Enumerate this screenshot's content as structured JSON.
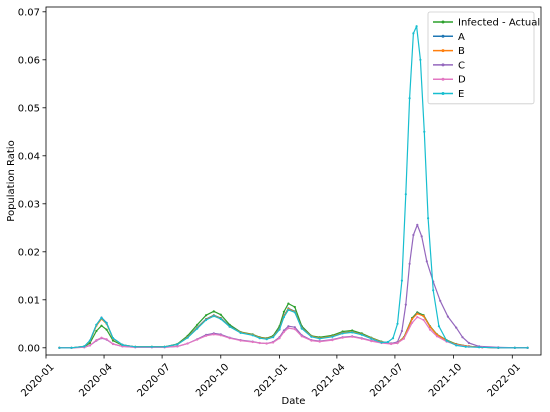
{
  "chart_data": {
    "type": "line",
    "title": "",
    "xlabel": "Date",
    "ylabel": "Population Ratio",
    "x_ticks": [
      "2020-01",
      "2020-04",
      "2020-07",
      "2020-10",
      "2021-01",
      "2021-04",
      "2021-07",
      "2021-10",
      "2022-01"
    ],
    "y_ticks": [
      "0.00",
      "0.01",
      "0.02",
      "0.03",
      "0.04",
      "0.05",
      "0.06",
      "0.07"
    ],
    "xlim": [
      "2020-01-01",
      "2022-02-15"
    ],
    "ylim": [
      -0.0015,
      0.071
    ],
    "grid": false,
    "legend_position": "top-right",
    "series": [
      {
        "name": "Infected - Actual",
        "color": "#2ca02c",
        "x": [
          "2020-01-22",
          "2020-02-10",
          "2020-03-01",
          "2020-03-10",
          "2020-03-20",
          "2020-03-28",
          "2020-04-05",
          "2020-04-15",
          "2020-04-30",
          "2020-05-20",
          "2020-06-15",
          "2020-07-05",
          "2020-07-25",
          "2020-08-10",
          "2020-08-25",
          "2020-09-08",
          "2020-09-20",
          "2020-10-01",
          "2020-10-15",
          "2020-11-01",
          "2020-11-20",
          "2020-12-01",
          "2020-12-12",
          "2020-12-22",
          "2021-01-01",
          "2021-01-08",
          "2021-01-15",
          "2021-01-25",
          "2021-02-05",
          "2021-02-20",
          "2021-03-05",
          "2021-03-25",
          "2021-04-10",
          "2021-04-25",
          "2021-05-10",
          "2021-05-25",
          "2021-06-10",
          "2021-06-25",
          "2021-07-05",
          "2021-07-15",
          "2021-07-28",
          "2021-08-05",
          "2021-08-15",
          "2021-08-25",
          "2021-09-05",
          "2021-09-20",
          "2021-10-05",
          "2021-10-25",
          "2021-11-15",
          "2021-12-10",
          "2022-01-05",
          "2022-01-25"
        ],
        "y": [
          0.0,
          0.0,
          0.0002,
          0.001,
          0.0035,
          0.0046,
          0.0038,
          0.0015,
          0.0005,
          0.0002,
          0.0002,
          0.0002,
          0.0008,
          0.0025,
          0.0048,
          0.0068,
          0.0076,
          0.0069,
          0.0048,
          0.0033,
          0.0028,
          0.0022,
          0.002,
          0.0025,
          0.0045,
          0.0075,
          0.0092,
          0.0085,
          0.0045,
          0.0025,
          0.0022,
          0.0026,
          0.0034,
          0.0036,
          0.003,
          0.0021,
          0.0013,
          0.0009,
          0.001,
          0.0022,
          0.0062,
          0.0074,
          0.0068,
          0.0045,
          0.0028,
          0.0016,
          0.0008,
          0.0003,
          0.0001,
          0.0,
          0.0,
          0.0
        ]
      },
      {
        "name": "A",
        "color": "#1f77b4",
        "x": [
          "2020-01-22",
          "2020-02-10",
          "2020-03-01",
          "2020-03-10",
          "2020-03-20",
          "2020-03-28",
          "2020-04-05",
          "2020-04-15",
          "2020-04-30",
          "2020-05-20",
          "2020-06-15",
          "2020-07-05",
          "2020-07-25",
          "2020-08-10",
          "2020-08-25",
          "2020-09-08",
          "2020-09-20",
          "2020-10-01",
          "2020-10-15",
          "2020-11-01",
          "2020-11-20",
          "2020-12-01",
          "2020-12-12",
          "2020-12-22",
          "2021-01-01",
          "2021-01-08",
          "2021-01-15",
          "2021-01-25",
          "2021-02-05",
          "2021-02-20",
          "2021-03-05",
          "2021-03-25",
          "2021-04-10",
          "2021-04-25",
          "2021-05-10",
          "2021-05-25",
          "2021-06-10",
          "2021-06-25",
          "2021-07-05",
          "2021-07-15",
          "2021-07-28",
          "2021-08-05",
          "2021-08-15",
          "2021-08-25",
          "2021-09-05",
          "2021-09-20",
          "2021-10-05",
          "2021-10-25",
          "2021-11-15",
          "2021-12-10",
          "2022-01-05",
          "2022-01-25"
        ],
        "y": [
          0.0,
          0.0,
          0.0003,
          0.0015,
          0.0048,
          0.0063,
          0.0052,
          0.002,
          0.0006,
          0.0002,
          0.0002,
          0.0002,
          0.0007,
          0.0022,
          0.0042,
          0.006,
          0.0068,
          0.0062,
          0.0045,
          0.0032,
          0.0027,
          0.0021,
          0.0019,
          0.0023,
          0.004,
          0.0067,
          0.0082,
          0.0076,
          0.0042,
          0.0024,
          0.002,
          0.0024,
          0.0031,
          0.0033,
          0.0028,
          0.002,
          0.0012,
          0.0009,
          0.001,
          0.0021,
          0.006,
          0.0072,
          0.0066,
          0.0044,
          0.0027,
          0.0015,
          0.0007,
          0.0003,
          0.0001,
          0.0,
          0.0,
          0.0
        ]
      },
      {
        "name": "B",
        "color": "#ff7f0e",
        "x": [
          "2020-01-22",
          "2020-02-10",
          "2020-03-01",
          "2020-03-10",
          "2020-03-20",
          "2020-03-28",
          "2020-04-05",
          "2020-04-15",
          "2020-04-30",
          "2020-05-20",
          "2020-06-15",
          "2020-07-05",
          "2020-07-25",
          "2020-08-10",
          "2020-08-25",
          "2020-09-08",
          "2020-09-20",
          "2020-10-01",
          "2020-10-15",
          "2020-11-01",
          "2020-11-20",
          "2020-12-01",
          "2020-12-12",
          "2020-12-22",
          "2021-01-01",
          "2021-01-08",
          "2021-01-15",
          "2021-01-25",
          "2021-02-05",
          "2021-02-20",
          "2021-03-05",
          "2021-03-25",
          "2021-04-10",
          "2021-04-25",
          "2021-05-10",
          "2021-05-25",
          "2021-06-10",
          "2021-06-25",
          "2021-07-05",
          "2021-07-15",
          "2021-07-28",
          "2021-08-05",
          "2021-08-15",
          "2021-08-25",
          "2021-09-05",
          "2021-09-20",
          "2021-10-05",
          "2021-10-25",
          "2021-11-15",
          "2021-12-10",
          "2022-01-05",
          "2022-01-25"
        ],
        "y": [
          0.0,
          0.0,
          0.0003,
          0.0014,
          0.0046,
          0.006,
          0.005,
          0.0019,
          0.0006,
          0.0002,
          0.0002,
          0.0002,
          0.0007,
          0.0022,
          0.0041,
          0.0059,
          0.0067,
          0.0061,
          0.0044,
          0.0032,
          0.0027,
          0.0021,
          0.0019,
          0.0023,
          0.0039,
          0.0066,
          0.0081,
          0.0075,
          0.0041,
          0.0024,
          0.002,
          0.0024,
          0.0031,
          0.0033,
          0.0028,
          0.002,
          0.0012,
          0.0009,
          0.001,
          0.0021,
          0.006,
          0.0071,
          0.0066,
          0.0044,
          0.0027,
          0.0015,
          0.0007,
          0.0003,
          0.0001,
          0.0,
          0.0,
          0.0
        ]
      },
      {
        "name": "C",
        "color": "#9467bd",
        "x": [
          "2020-01-22",
          "2020-02-10",
          "2020-03-01",
          "2020-03-10",
          "2020-03-20",
          "2020-03-28",
          "2020-04-05",
          "2020-04-15",
          "2020-04-30",
          "2020-05-20",
          "2020-06-15",
          "2020-07-05",
          "2020-07-25",
          "2020-08-10",
          "2020-08-25",
          "2020-09-08",
          "2020-09-20",
          "2020-10-01",
          "2020-10-15",
          "2020-11-01",
          "2020-11-20",
          "2020-12-01",
          "2020-12-12",
          "2020-12-22",
          "2021-01-01",
          "2021-01-08",
          "2021-01-15",
          "2021-01-25",
          "2021-02-05",
          "2021-02-20",
          "2021-03-05",
          "2021-03-25",
          "2021-04-10",
          "2021-04-25",
          "2021-05-10",
          "2021-05-25",
          "2021-06-10",
          "2021-06-25",
          "2021-07-05",
          "2021-07-12",
          "2021-07-18",
          "2021-07-24",
          "2021-07-30",
          "2021-08-05",
          "2021-08-12",
          "2021-08-20",
          "2021-08-30",
          "2021-09-10",
          "2021-09-22",
          "2021-10-05",
          "2021-10-15",
          "2021-10-25",
          "2021-11-10",
          "2021-12-10",
          "2022-01-05",
          "2022-01-25"
        ],
        "y": [
          0.0,
          0.0,
          0.0001,
          0.0005,
          0.0015,
          0.002,
          0.0017,
          0.0008,
          0.0003,
          0.0001,
          0.0001,
          0.0001,
          0.0003,
          0.0009,
          0.0018,
          0.0027,
          0.003,
          0.0028,
          0.0021,
          0.0016,
          0.0013,
          0.001,
          0.0009,
          0.0012,
          0.0022,
          0.0036,
          0.0045,
          0.0043,
          0.0026,
          0.0016,
          0.0014,
          0.0017,
          0.0022,
          0.0024,
          0.002,
          0.0015,
          0.0011,
          0.0009,
          0.0012,
          0.0035,
          0.009,
          0.0175,
          0.0235,
          0.0256,
          0.0232,
          0.018,
          0.0138,
          0.0098,
          0.0065,
          0.0042,
          0.0022,
          0.001,
          0.0003,
          0.0001,
          0.0,
          0.0
        ]
      },
      {
        "name": "D",
        "color": "#e377c2",
        "x": [
          "2020-01-22",
          "2020-02-10",
          "2020-03-01",
          "2020-03-10",
          "2020-03-20",
          "2020-03-28",
          "2020-04-05",
          "2020-04-15",
          "2020-04-30",
          "2020-05-20",
          "2020-06-15",
          "2020-07-05",
          "2020-07-25",
          "2020-08-10",
          "2020-08-25",
          "2020-09-08",
          "2020-09-20",
          "2020-10-01",
          "2020-10-15",
          "2020-11-01",
          "2020-11-20",
          "2020-12-01",
          "2020-12-12",
          "2020-12-22",
          "2021-01-01",
          "2021-01-08",
          "2021-01-15",
          "2021-01-25",
          "2021-02-05",
          "2021-02-20",
          "2021-03-05",
          "2021-03-25",
          "2021-04-10",
          "2021-04-25",
          "2021-05-10",
          "2021-05-25",
          "2021-06-10",
          "2021-06-25",
          "2021-07-05",
          "2021-07-15",
          "2021-07-28",
          "2021-08-05",
          "2021-08-15",
          "2021-08-25",
          "2021-09-05",
          "2021-09-20",
          "2021-10-05",
          "2021-10-25",
          "2021-11-15",
          "2021-12-10",
          "2022-01-05",
          "2022-01-25"
        ],
        "y": [
          0.0,
          0.0,
          0.0001,
          0.0005,
          0.0016,
          0.0021,
          0.0018,
          0.0008,
          0.0003,
          0.0001,
          0.0001,
          0.0001,
          0.0003,
          0.0009,
          0.0017,
          0.0025,
          0.0028,
          0.0026,
          0.002,
          0.0015,
          0.0012,
          0.001,
          0.0009,
          0.0011,
          0.002,
          0.0033,
          0.0041,
          0.0039,
          0.0024,
          0.0015,
          0.0013,
          0.0016,
          0.0021,
          0.0023,
          0.0019,
          0.0014,
          0.001,
          0.0008,
          0.001,
          0.0019,
          0.0052,
          0.0064,
          0.0058,
          0.0038,
          0.0024,
          0.0013,
          0.0006,
          0.0002,
          0.0001,
          0.0,
          0.0,
          0.0
        ]
      },
      {
        "name": "E",
        "color": "#17becf",
        "x": [
          "2020-01-22",
          "2020-02-10",
          "2020-03-01",
          "2020-03-10",
          "2020-03-20",
          "2020-03-28",
          "2020-04-05",
          "2020-04-15",
          "2020-04-30",
          "2020-05-20",
          "2020-06-15",
          "2020-07-05",
          "2020-07-25",
          "2020-08-10",
          "2020-08-25",
          "2020-09-08",
          "2020-09-20",
          "2020-10-01",
          "2020-10-15",
          "2020-11-01",
          "2020-11-20",
          "2020-12-01",
          "2020-12-12",
          "2020-12-22",
          "2021-01-01",
          "2021-01-08",
          "2021-01-15",
          "2021-01-25",
          "2021-02-05",
          "2021-02-20",
          "2021-03-05",
          "2021-03-25",
          "2021-04-10",
          "2021-04-25",
          "2021-05-10",
          "2021-05-25",
          "2021-06-10",
          "2021-06-20",
          "2021-06-28",
          "2021-07-05",
          "2021-07-12",
          "2021-07-18",
          "2021-07-24",
          "2021-07-30",
          "2021-08-04",
          "2021-08-10",
          "2021-08-16",
          "2021-08-22",
          "2021-08-30",
          "2021-09-08",
          "2021-09-20",
          "2021-10-05",
          "2021-10-20",
          "2021-11-10",
          "2021-12-10",
          "2022-01-05",
          "2022-01-25"
        ],
        "y": [
          0.0,
          0.0,
          0.0003,
          0.0015,
          0.0048,
          0.0062,
          0.0051,
          0.002,
          0.0006,
          0.0002,
          0.0002,
          0.0002,
          0.0007,
          0.0021,
          0.004,
          0.0058,
          0.0066,
          0.006,
          0.0044,
          0.0031,
          0.0026,
          0.002,
          0.0018,
          0.0022,
          0.0038,
          0.0064,
          0.0079,
          0.0074,
          0.004,
          0.0023,
          0.0019,
          0.0023,
          0.003,
          0.0032,
          0.0027,
          0.0019,
          0.0011,
          0.0012,
          0.002,
          0.005,
          0.014,
          0.032,
          0.052,
          0.0655,
          0.067,
          0.06,
          0.045,
          0.027,
          0.012,
          0.0045,
          0.0015,
          0.0005,
          0.0002,
          0.0001,
          0.0,
          0.0,
          0.0
        ]
      }
    ]
  }
}
